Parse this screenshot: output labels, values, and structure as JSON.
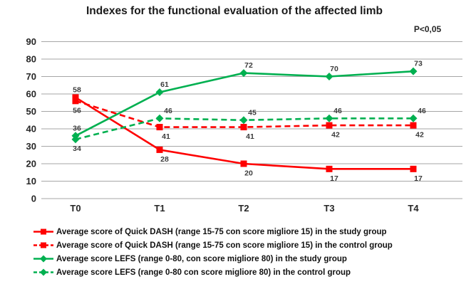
{
  "title": "Indexes for the functional evaluation of the affected limb",
  "annotation": "P<0,05",
  "chart_data": {
    "type": "line",
    "title": "Indexes for the functional evaluation of the affected limb",
    "annotation": "P<0,05",
    "categories": [
      "T0",
      "T1",
      "T2",
      "T3",
      "T4"
    ],
    "series": [
      {
        "name": "Average score of Quick DASH (range 15-75 con score migliore 15) in the study group",
        "values": [
          58,
          28,
          20,
          17,
          17
        ],
        "color": "#fe0000",
        "line_style": "solid",
        "marker": "square",
        "label_pos": "below",
        "label_dx": 7,
        "label_overrides": {
          "0": "above"
        }
      },
      {
        "name": "Average score of Quick DASH (range 15-75 con score migliore 15) in the control group",
        "values": [
          56,
          41,
          41,
          42,
          42
        ],
        "color": "#fe0000",
        "line_style": "dashed",
        "marker": "square",
        "label_pos": "below",
        "label_dx": 9,
        "label_overrides": {}
      },
      {
        "name": "Average score LEFS (range 0-80, con score migliore 80) in the study group",
        "values": [
          36,
          61,
          72,
          70,
          73
        ],
        "color": "#00b050",
        "line_style": "solid",
        "marker": "diamond",
        "label_pos": "above",
        "label_dx": 7,
        "label_overrides": {
          "0": "above"
        }
      },
      {
        "name": "Average score LEFS (range 0-80 con score migliore 80) in the control group",
        "values": [
          34,
          46,
          45,
          46,
          46
        ],
        "color": "#00b050",
        "line_style": "dashed",
        "marker": "diamond",
        "label_pos": "above",
        "label_dx": 12,
        "label_overrides": {
          "0": "below"
        }
      }
    ],
    "ylim": [
      0,
      90
    ],
    "ytick_step": 10,
    "yticks": [
      "0",
      "10",
      "20",
      "30",
      "40",
      "50",
      "60",
      "70",
      "80",
      "90"
    ],
    "grid": "horizontal",
    "legend_position": "bottom",
    "grid_color": "#a6a6a6",
    "tick_label_color": "#262626",
    "data_label_color": "#3c3c3c"
  }
}
